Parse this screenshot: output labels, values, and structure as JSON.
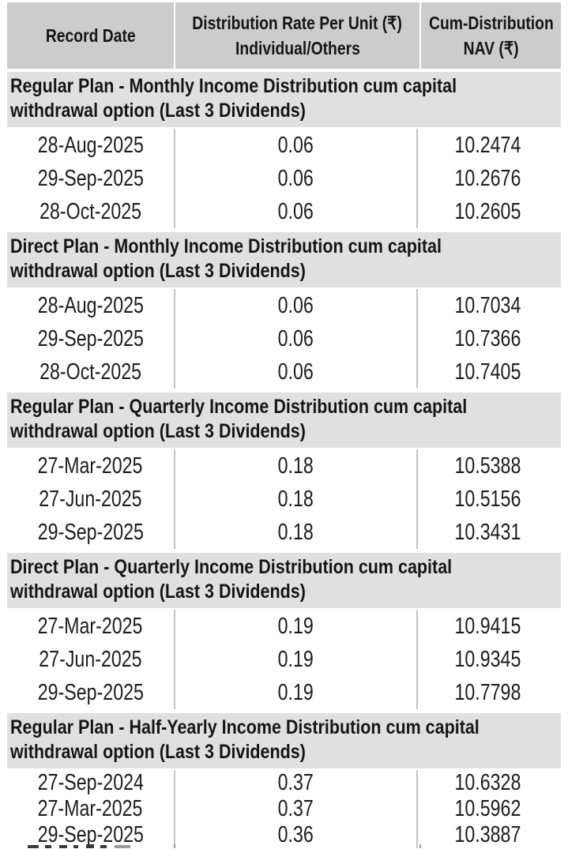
{
  "header": {
    "col1": "Record Date",
    "col2_line1": "Distribution Rate Per Unit (₹)",
    "col2_line2": "Individual/Others",
    "col3_line1": "Cum-Distribution",
    "col3_line2": "NAV (₹)"
  },
  "sections": [
    {
      "title_lines": [
        "Regular Plan - Monthly Income Distribution cum capital",
        "withdrawal option (Last 3 Dividends)"
      ],
      "rows": [
        {
          "record_date": "28-Aug-2025",
          "rate": "0.06",
          "nav": "10.2474"
        },
        {
          "record_date": "29-Sep-2025",
          "rate": "0.06",
          "nav": "10.2676"
        },
        {
          "record_date": "28-Oct-2025",
          "rate": "0.06",
          "nav": "10.2605"
        }
      ],
      "tight": false
    },
    {
      "title_lines": [
        "Direct Plan - Monthly Income Distribution cum capital",
        "withdrawal option (Last 3 Dividends)"
      ],
      "rows": [
        {
          "record_date": "28-Aug-2025",
          "rate": "0.06",
          "nav": "10.7034"
        },
        {
          "record_date": "29-Sep-2025",
          "rate": "0.06",
          "nav": "10.7366"
        },
        {
          "record_date": "28-Oct-2025",
          "rate": "0.06",
          "nav": "10.7405"
        }
      ],
      "tight": false
    },
    {
      "title_lines": [
        "Regular Plan - Quarterly Income Distribution cum capital",
        "withdrawal option (Last 3 Dividends)"
      ],
      "rows": [
        {
          "record_date": "27-Mar-2025",
          "rate": "0.18",
          "nav": "10.5388"
        },
        {
          "record_date": "27-Jun-2025",
          "rate": "0.18",
          "nav": "10.5156"
        },
        {
          "record_date": "29-Sep-2025",
          "rate": "0.18",
          "nav": "10.3431"
        }
      ],
      "tight": false
    },
    {
      "title_lines": [
        "Direct Plan - Quarterly Income Distribution cum capital",
        "withdrawal option (Last 3 Dividends)"
      ],
      "rows": [
        {
          "record_date": "27-Mar-2025",
          "rate": "0.19",
          "nav": "10.9415"
        },
        {
          "record_date": "27-Jun-2025",
          "rate": "0.19",
          "nav": "10.9345"
        },
        {
          "record_date": "29-Sep-2025",
          "rate": "0.19",
          "nav": "10.7798"
        }
      ],
      "tight": false
    },
    {
      "title_lines": [
        "Regular Plan - Half-Yearly Income Distribution cum capital",
        "withdrawal option (Last 3 Dividends)"
      ],
      "rows": [
        {
          "record_date": "27-Sep-2024",
          "rate": "0.37",
          "nav": "10.6328"
        },
        {
          "record_date": "27-Mar-2025",
          "rate": "0.37",
          "nav": "10.5962"
        },
        {
          "record_date": "29-Sep-2025",
          "rate": "0.36",
          "nav": "10.3887"
        }
      ],
      "tight": true
    }
  ],
  "colors": {
    "header_bg": "#cccccc",
    "section_bg": "#e0e0e0",
    "row_bg": "#ffffff",
    "separator": "#c3c3c3",
    "text": "#161616"
  }
}
